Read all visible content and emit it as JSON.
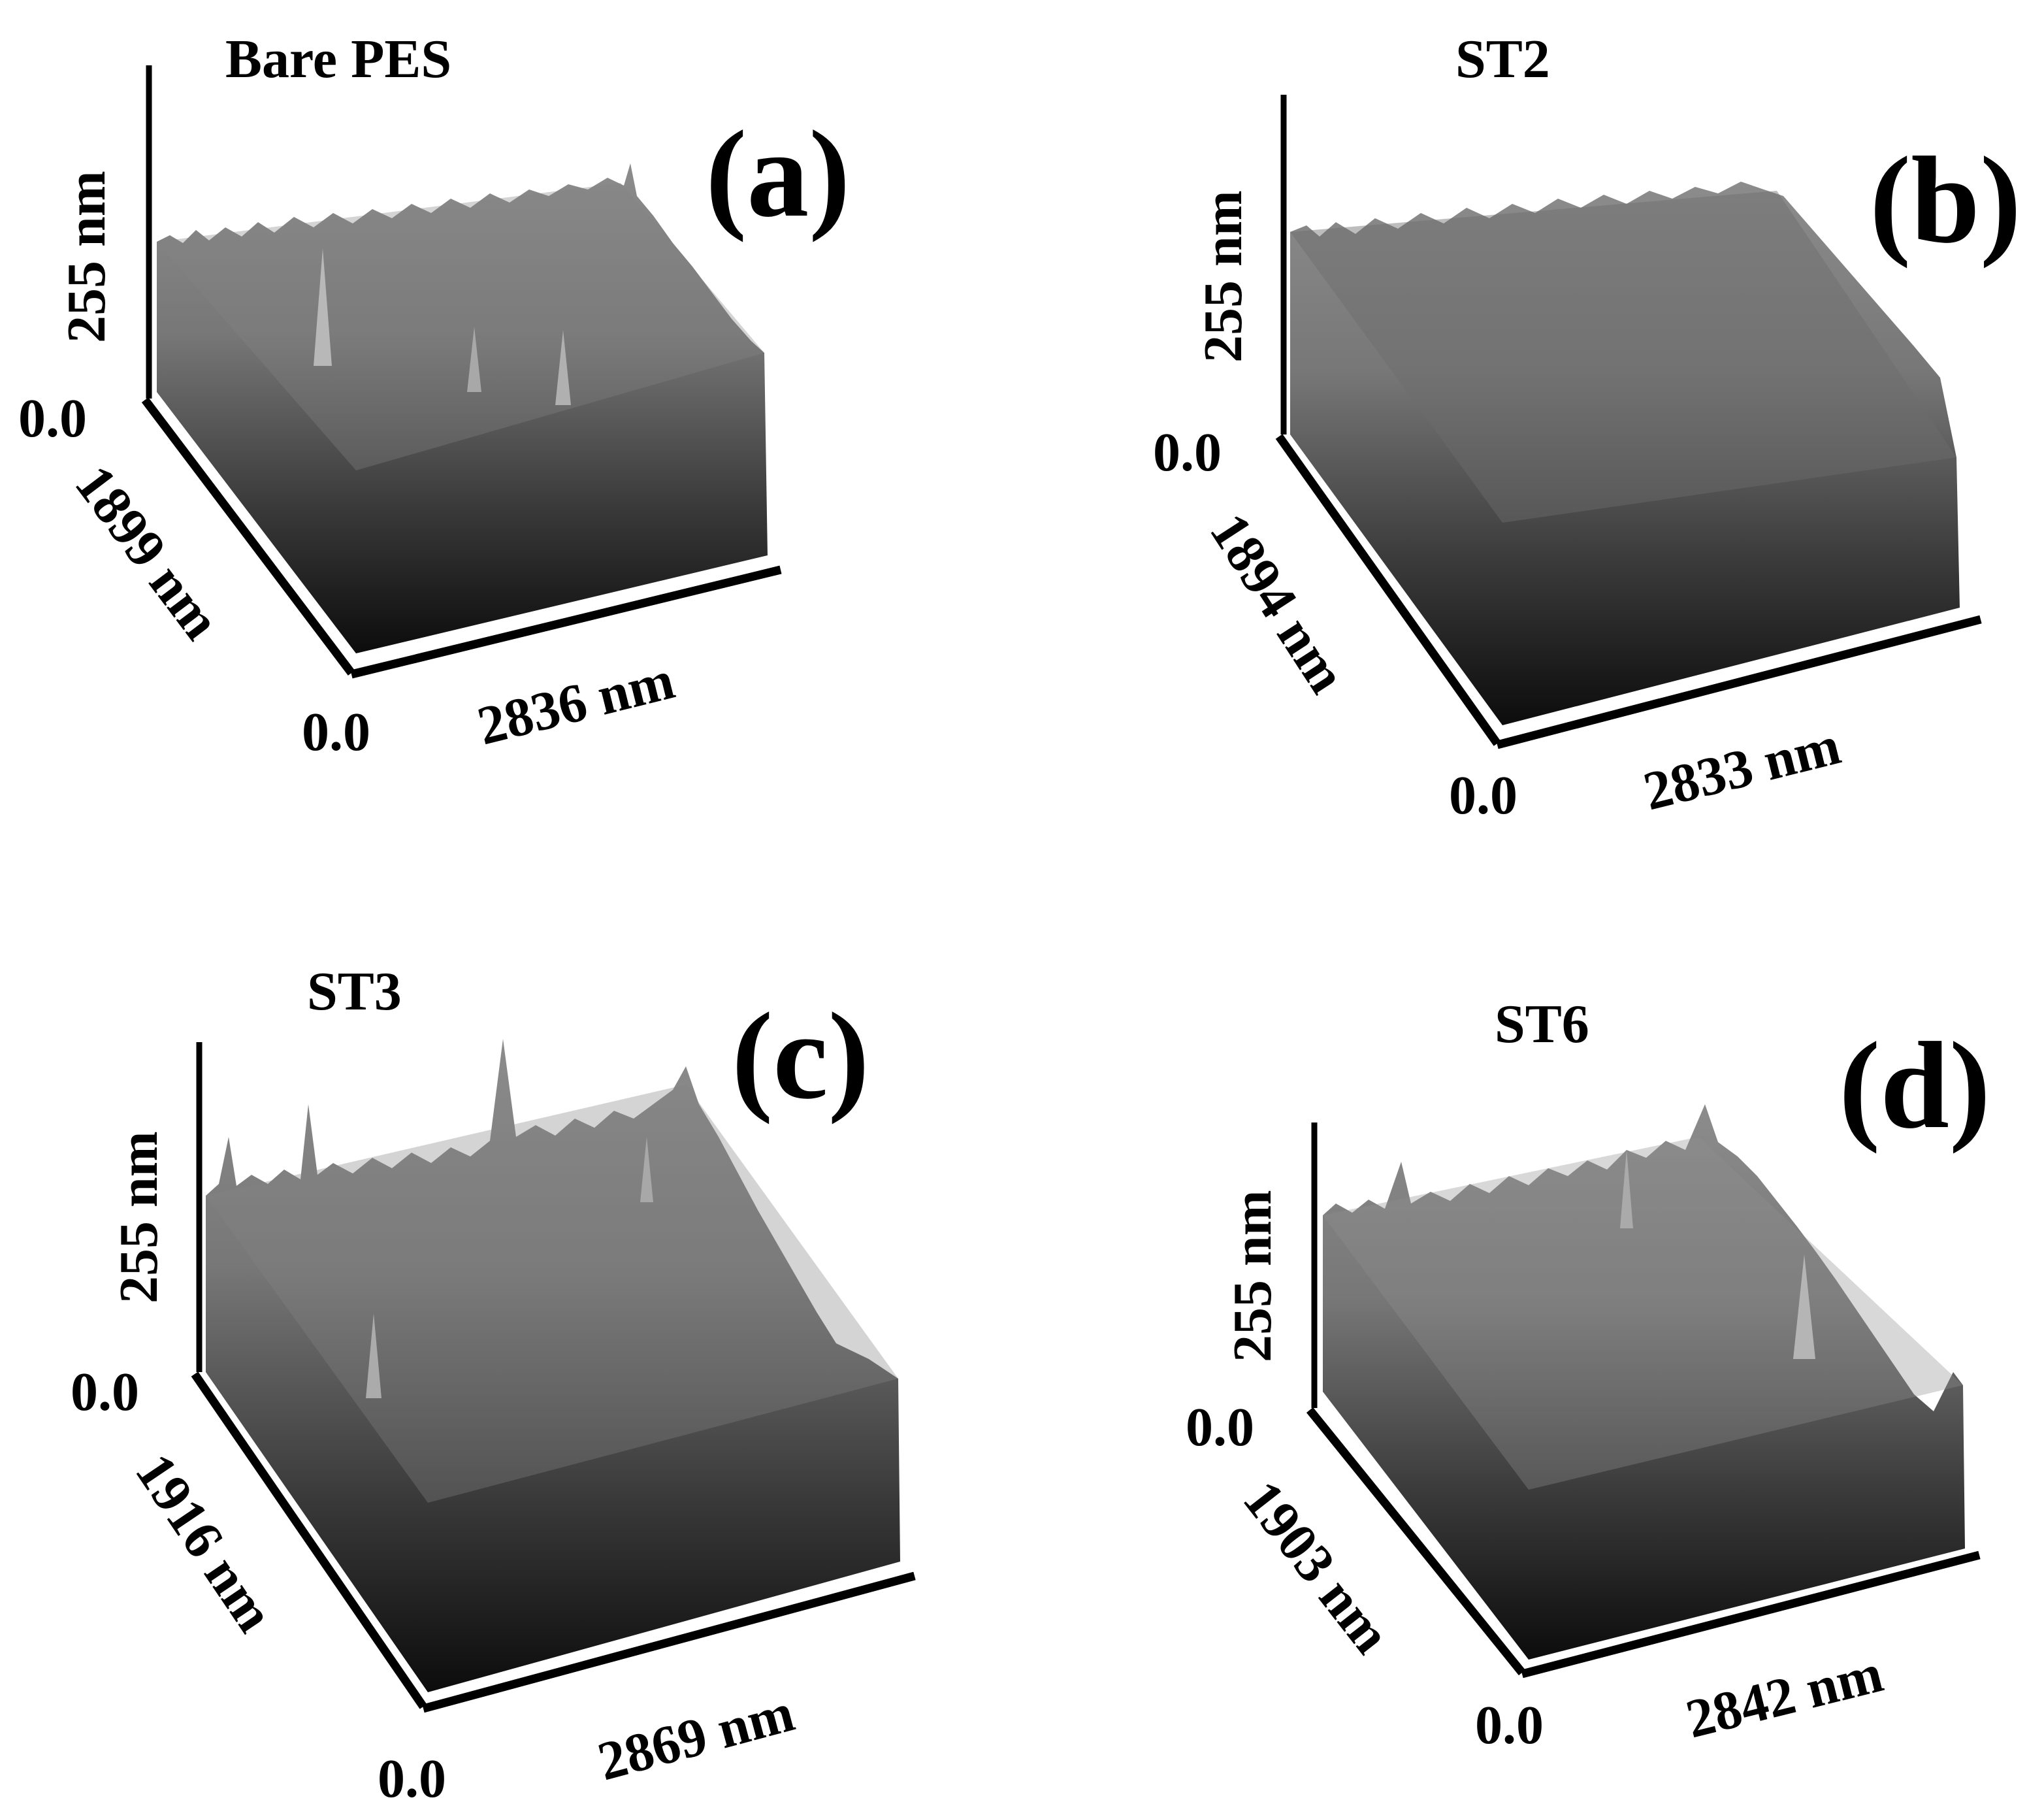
{
  "figure": {
    "panels": [
      {
        "id": "a",
        "letter": "(a)",
        "title": "Bare PES",
        "z_label": "255 nm",
        "z_origin": "0.0",
        "depth_label": "1899 nm",
        "width_label": "2836 nm",
        "xy_origin": "0.0"
      },
      {
        "id": "b",
        "letter": "(b)",
        "title": "ST2",
        "z_label": "255 nm",
        "z_origin": "0.0",
        "depth_label": "1894 nm",
        "width_label": "2833 nm",
        "xy_origin": "0.0"
      },
      {
        "id": "c",
        "letter": "(c)",
        "title": "ST3",
        "z_label": "255 nm",
        "z_origin": "0.0",
        "depth_label": "1916 nm",
        "width_label": "2869 nm",
        "xy_origin": "0.0"
      },
      {
        "id": "d",
        "letter": "(d)",
        "title": "ST6",
        "z_label": "255 nm",
        "z_origin": "0.0",
        "depth_label": "1903 nm",
        "width_label": "2842 nm",
        "xy_origin": "0.0"
      }
    ],
    "colors": {
      "axis": "#000000",
      "surface_top": "#8a8a8a",
      "surface_mid": "#6e6e6e",
      "surface_bottom": "#101010"
    }
  }
}
